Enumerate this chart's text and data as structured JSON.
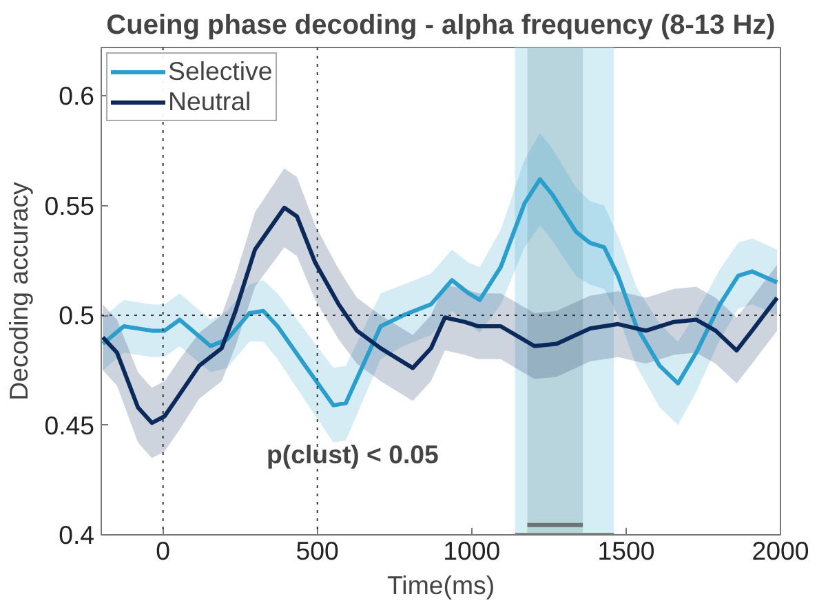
{
  "chart_data": {
    "type": "line",
    "title": "Cueing phase decoding - alpha frequency (8-13 Hz)",
    "xlabel": "Time(ms)",
    "ylabel": "Decoding accuracy",
    "xlim": [
      -200,
      2000
    ],
    "xticks": [
      0,
      500,
      1000,
      1500,
      2000
    ],
    "ylim": [
      0.4,
      0.622
    ],
    "yticks": [
      0.4,
      0.45,
      0.5,
      0.55,
      0.6
    ],
    "grid": false,
    "legend": "top left",
    "line_style": "solid",
    "annotations": [
      "p(clust) < 0.05"
    ],
    "ref_lines": [
      {
        "axis": "x",
        "value": 0,
        "color": "#333333",
        "line_style": "dotted"
      },
      {
        "axis": "x",
        "value": 500,
        "color": "#333333",
        "line_style": "dotted"
      },
      {
        "axis": "y",
        "value": 0.5,
        "color": "#333333",
        "line_style": "dotted"
      }
    ],
    "bands": [
      {
        "axis": "x",
        "from": 1140,
        "to": 1460,
        "color": "#bfe3f0"
      },
      {
        "axis": "x",
        "from": 1180,
        "to": 1360,
        "color": "#a9c6d0"
      }
    ],
    "series": [
      {
        "name": "Selective",
        "color": "#2b9fcc",
        "x": [
          -195,
          -127,
          -36,
          5,
          54,
          154,
          208,
          280,
          325,
          371,
          461,
          552,
          592,
          705,
          778,
          868,
          936,
          990,
          1026,
          1094,
          1171,
          1221,
          1261,
          1338,
          1383,
          1429,
          1474,
          1533,
          1609,
          1668,
          1727,
          1804,
          1863,
          1908,
          1989
        ],
        "values": [
          0.487,
          0.495,
          0.493,
          0.493,
          0.498,
          0.486,
          0.489,
          0.501,
          0.502,
          0.495,
          0.477,
          0.459,
          0.46,
          0.495,
          0.5,
          0.505,
          0.516,
          0.51,
          0.507,
          0.522,
          0.551,
          0.562,
          0.555,
          0.538,
          0.533,
          0.531,
          0.518,
          0.495,
          0.477,
          0.469,
          0.483,
          0.505,
          0.518,
          0.52,
          0.515
        ],
        "lower": [
          0.475,
          0.483,
          0.481,
          0.481,
          0.486,
          0.474,
          0.476,
          0.488,
          0.488,
          0.48,
          0.461,
          0.442,
          0.443,
          0.48,
          0.486,
          0.491,
          0.502,
          0.496,
          0.492,
          0.505,
          0.531,
          0.541,
          0.534,
          0.518,
          0.514,
          0.512,
          0.5,
          0.477,
          0.458,
          0.45,
          0.465,
          0.489,
          0.503,
          0.505,
          0.5
        ],
        "upper": [
          0.499,
          0.507,
          0.505,
          0.505,
          0.51,
          0.498,
          0.502,
          0.514,
          0.516,
          0.51,
          0.493,
          0.476,
          0.477,
          0.51,
          0.514,
          0.519,
          0.53,
          0.524,
          0.522,
          0.539,
          0.571,
          0.583,
          0.576,
          0.558,
          0.552,
          0.55,
          0.536,
          0.513,
          0.496,
          0.488,
          0.501,
          0.521,
          0.533,
          0.535,
          0.53
        ]
      },
      {
        "name": "Neutral",
        "color": "#0b2a5b",
        "x": [
          -195,
          -149,
          -81,
          -36,
          5,
          54,
          117,
          190,
          235,
          298,
          393,
          434,
          493,
          569,
          628,
          705,
          809,
          868,
          913,
          977,
          1022,
          1094,
          1203,
          1275,
          1383,
          1474,
          1564,
          1655,
          1727,
          1790,
          1858,
          1908,
          1989
        ],
        "values": [
          0.49,
          0.483,
          0.458,
          0.451,
          0.454,
          0.464,
          0.477,
          0.485,
          0.502,
          0.53,
          0.549,
          0.545,
          0.524,
          0.505,
          0.493,
          0.485,
          0.476,
          0.485,
          0.499,
          0.497,
          0.495,
          0.495,
          0.486,
          0.487,
          0.494,
          0.496,
          0.493,
          0.497,
          0.498,
          0.493,
          0.484,
          0.493,
          0.508
        ],
        "lower": [
          0.475,
          0.468,
          0.442,
          0.435,
          0.438,
          0.448,
          0.462,
          0.47,
          0.486,
          0.513,
          0.531,
          0.527,
          0.507,
          0.489,
          0.478,
          0.47,
          0.461,
          0.47,
          0.484,
          0.482,
          0.48,
          0.48,
          0.471,
          0.472,
          0.479,
          0.481,
          0.478,
          0.482,
          0.483,
          0.478,
          0.469,
          0.478,
          0.493
        ],
        "upper": [
          0.505,
          0.498,
          0.474,
          0.467,
          0.47,
          0.48,
          0.492,
          0.5,
          0.518,
          0.547,
          0.567,
          0.563,
          0.541,
          0.521,
          0.508,
          0.5,
          0.491,
          0.5,
          0.514,
          0.512,
          0.51,
          0.51,
          0.501,
          0.502,
          0.509,
          0.511,
          0.508,
          0.512,
          0.513,
          0.508,
          0.499,
          0.508,
          0.523
        ]
      },
      {
        "color": "#2aa5d0",
        "x": [
          1140,
          1460
        ],
        "values": [
          0.4,
          0.4
        ]
      },
      {
        "color": "#6e7378",
        "x": [
          1180,
          1360
        ],
        "values": [
          0.4045,
          0.4045
        ]
      }
    ]
  }
}
